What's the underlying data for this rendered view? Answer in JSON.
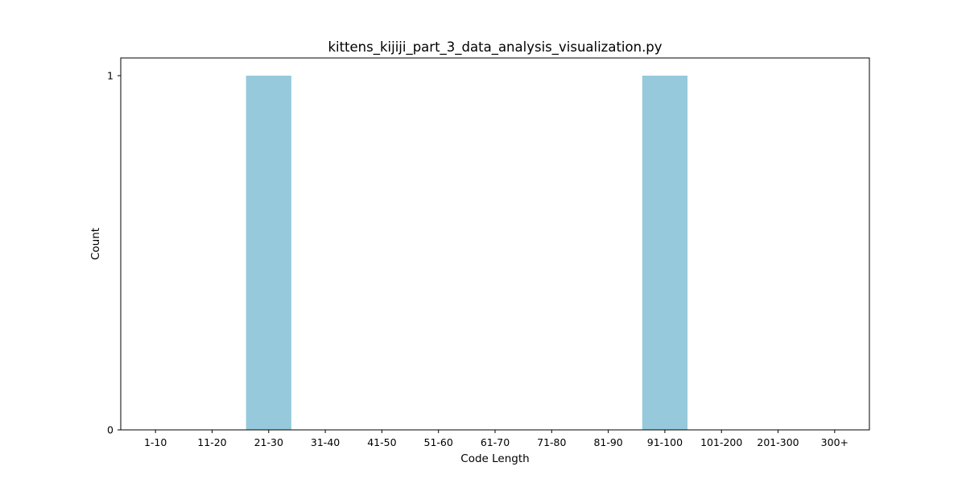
{
  "chart_data": {
    "type": "bar",
    "title": "kittens_kijiji_part_3_data_analysis_visualization.py",
    "xlabel": "Code Length",
    "ylabel": "Count",
    "categories": [
      "1-10",
      "11-20",
      "21-30",
      "31-40",
      "41-50",
      "51-60",
      "61-70",
      "71-80",
      "81-90",
      "91-100",
      "101-200",
      "201-300",
      "300+"
    ],
    "values": [
      0,
      0,
      1,
      0,
      0,
      0,
      0,
      0,
      0,
      1,
      0,
      0,
      0
    ],
    "yticks": [
      0,
      1
    ],
    "ylim": [
      0,
      1.05
    ],
    "grid": false,
    "legend": "none",
    "bar_color": "#96c9dc"
  }
}
